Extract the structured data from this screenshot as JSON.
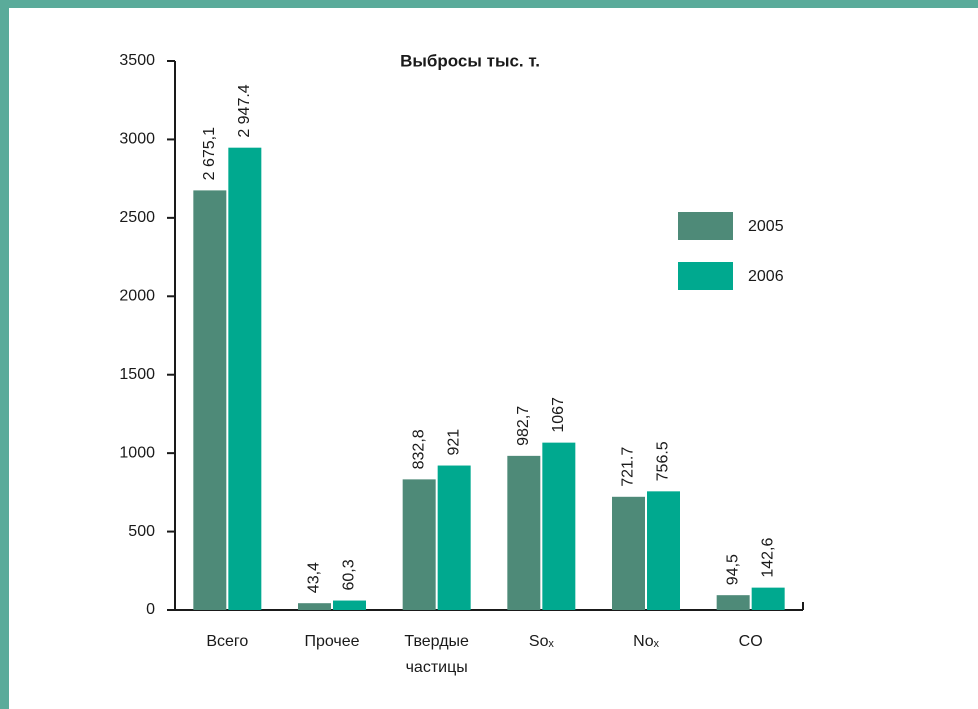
{
  "chart_data": {
    "type": "bar",
    "title": "Выбросы тыс. т.",
    "categories": [
      "Всего",
      "Прочее",
      "Твердые частицы",
      "Soₓ",
      "Noₓ",
      "CO"
    ],
    "series": [
      {
        "name": "2005",
        "color": "#4e8a78",
        "values": [
          2675.1,
          43.4,
          832.8,
          982.7,
          721.7,
          94.5
        ],
        "value_labels": [
          "2 675,1",
          "43,4",
          "832,8",
          "982,7",
          "721.7",
          "94,5"
        ]
      },
      {
        "name": "2006",
        "color": "#00a98f",
        "values": [
          2947.4,
          60.3,
          921,
          1067,
          756.5,
          142.6
        ],
        "value_labels": [
          "2 947.4",
          "60,3",
          "921",
          "1067",
          "756.5",
          "142,6"
        ]
      }
    ],
    "ylim": [
      0,
      3500
    ],
    "yticks": [
      0,
      500,
      1000,
      1500,
      2000,
      2500,
      3000,
      3500
    ],
    "legend": "upper right"
  }
}
